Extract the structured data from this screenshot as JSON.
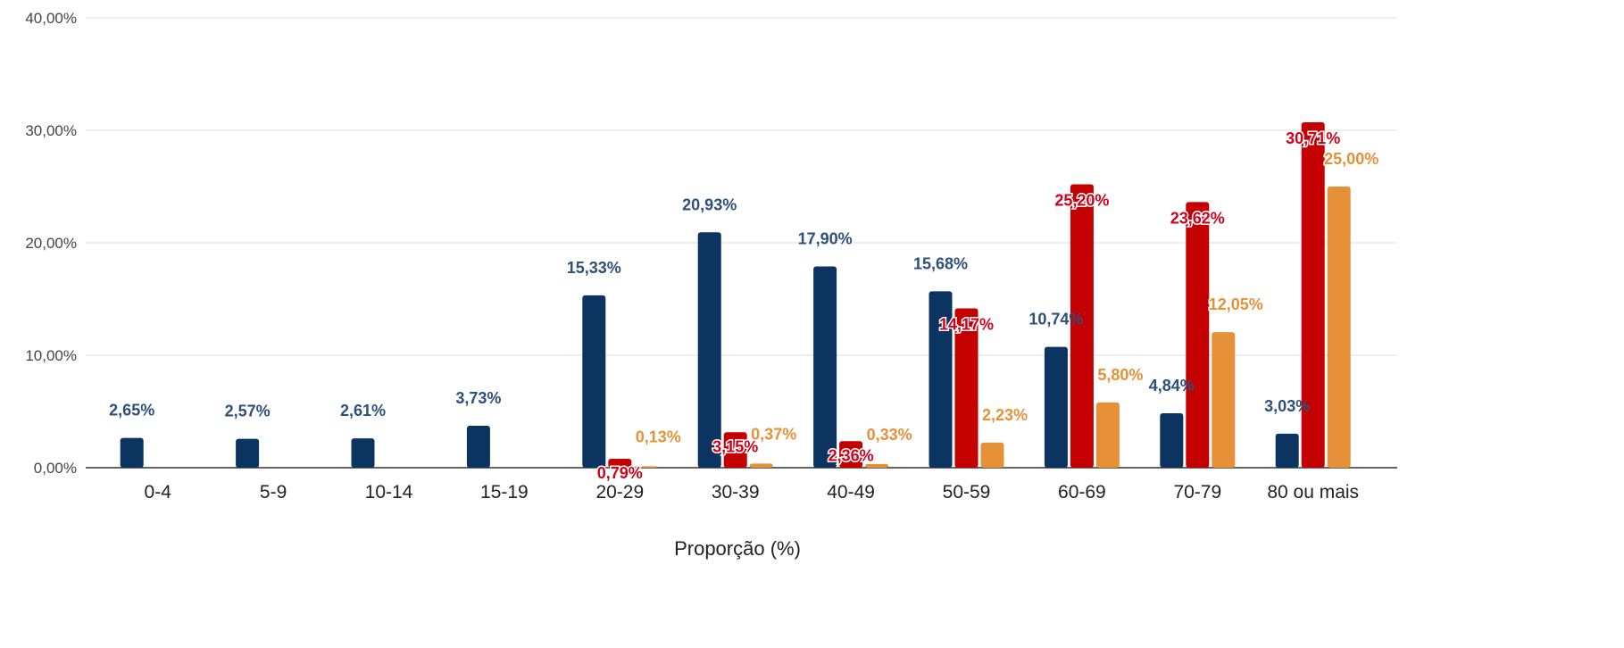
{
  "chart_data": {
    "type": "bar",
    "xlabel": "Proporção (%)",
    "ylabel": "",
    "ylim": [
      0,
      40
    ],
    "y_ticks": [
      "0,00%",
      "10,00%",
      "20,00%",
      "30,00%",
      "40,00%"
    ],
    "grid": true,
    "legend": "none",
    "categories": [
      "0-4",
      "5-9",
      "10-14",
      "15-19",
      "20-29",
      "30-39",
      "40-49",
      "50-59",
      "60-69",
      "70-79",
      "80 ou mais"
    ],
    "series": [
      {
        "color": "#0b3461",
        "label_color": "#2d4f7c",
        "values": [
          2.65,
          2.57,
          2.61,
          3.73,
          15.33,
          20.93,
          17.9,
          15.68,
          10.74,
          4.84,
          3.03
        ],
        "labels": [
          "2,65%",
          "2,57%",
          "2,61%",
          "3,73%",
          "15,33%",
          "20,93%",
          "17,90%",
          "15,68%",
          "10,74%",
          "4,84%",
          "3,03%"
        ]
      },
      {
        "color": "#c50000",
        "label_color": "#d0021b",
        "values": [
          null,
          null,
          null,
          null,
          0.79,
          3.15,
          2.36,
          14.17,
          25.2,
          23.62,
          30.71
        ],
        "labels": [
          "",
          "",
          "",
          "",
          "0,79%",
          "3,15%",
          "2,36%",
          "14,17%",
          "25,20%",
          "23,62%",
          "30,71%"
        ]
      },
      {
        "color": "#e69138",
        "label_color": "#e69138",
        "values": [
          null,
          null,
          null,
          null,
          0.13,
          0.37,
          0.33,
          2.23,
          5.8,
          12.05,
          25.0
        ],
        "labels": [
          "",
          "",
          "",
          "",
          "0,13%",
          "0,37%",
          "0,33%",
          "2,23%",
          "5,80%",
          "12,05%",
          "25,00%"
        ]
      }
    ]
  }
}
